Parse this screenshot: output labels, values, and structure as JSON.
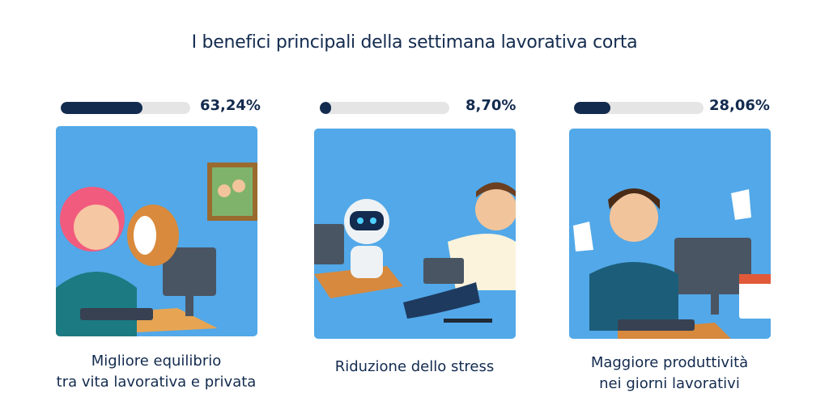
{
  "title": "I benefici principali della settimana lavorativa corta",
  "colors": {
    "bar_fill": "#132b4f",
    "bar_track": "#e5e5e5",
    "card_bg": "#52a8e8",
    "text": "#132b4f"
  },
  "benefits": [
    {
      "percent": 63.24,
      "percent_label": "63,24%",
      "label_line1": "Migliore equilibrio",
      "label_line2": "tra vita lavorativa e privata",
      "illustration": "woman-with-dog-at-computer"
    },
    {
      "percent": 8.7,
      "percent_label": "8,70%",
      "label_line1": "Riduzione dello stress",
      "label_line2": "",
      "illustration": "robot-working-man-relaxing"
    },
    {
      "percent": 28.06,
      "percent_label": "28,06%",
      "label_line1": "Maggiore produttività",
      "label_line2": "nei giorni lavorativi",
      "illustration": "man-meditating-at-computer"
    }
  ]
}
